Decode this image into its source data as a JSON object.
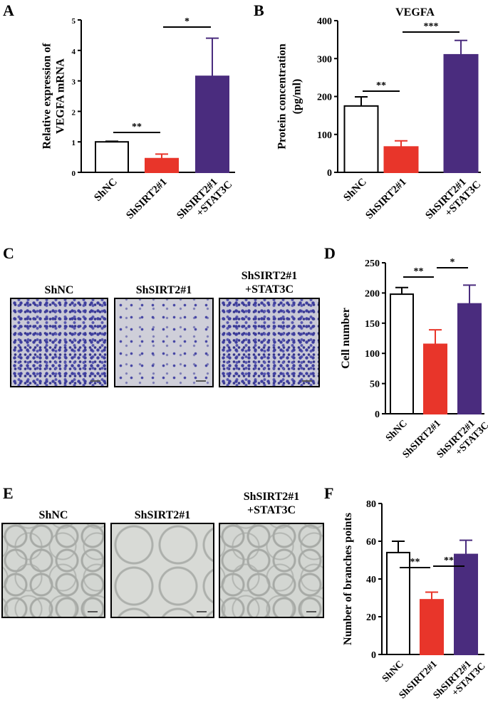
{
  "panels": {
    "A": "A",
    "B": "B",
    "C": "C",
    "D": "D",
    "E": "E",
    "F": "F"
  },
  "micrographs": {
    "c": [
      {
        "caption": "ShNC",
        "style": "stain"
      },
      {
        "caption": "ShSIRT2#1",
        "style": "stain sparse"
      },
      {
        "caption": "ShSIRT2#1\n+STAT3C",
        "style": "stain"
      }
    ],
    "e": [
      {
        "caption": "ShNC",
        "style": "tube"
      },
      {
        "caption": "ShSIRT2#1",
        "style": "tube sparse"
      },
      {
        "caption": "ShSIRT2#1\n+STAT3C",
        "style": "tube"
      }
    ]
  },
  "colors": {
    "shnc": "#ffffff",
    "shsirt2": "#e8352a",
    "stat3c": "#4a2c7e",
    "axis": "#000000"
  },
  "chart_data": [
    {
      "id": "A",
      "type": "bar",
      "title": "",
      "ylabel": "Relative expression of\nVEGFA mRNA",
      "xlabel": "",
      "categories": [
        "ShNC",
        "ShSIRT2#1",
        "ShSIRT2#1\n+STAT3C"
      ],
      "values": [
        1.0,
        0.45,
        3.15
      ],
      "errors": [
        0.02,
        0.15,
        1.25
      ],
      "ylim": [
        0,
        5
      ],
      "yticks": [
        0,
        1,
        2,
        3,
        4,
        5
      ],
      "significance": [
        {
          "from": 0,
          "to": 1,
          "label": "**"
        },
        {
          "from": 1,
          "to": 2,
          "label": "*"
        }
      ]
    },
    {
      "id": "B",
      "type": "bar",
      "title": "VEGFA",
      "ylabel": "Protein concentration\n(pg/ml)",
      "xlabel": "",
      "categories": [
        "ShNC",
        "ShSIRT2#1",
        "ShSIRT2#1\n+STAT3C"
      ],
      "values": [
        175,
        67,
        310
      ],
      "errors": [
        24,
        16,
        38
      ],
      "ylim": [
        0,
        400
      ],
      "yticks": [
        0,
        100,
        200,
        300,
        400
      ],
      "significance": [
        {
          "from": 0,
          "to": 1,
          "label": "**"
        },
        {
          "from": 1,
          "to": 2,
          "label": "***"
        }
      ]
    },
    {
      "id": "D",
      "type": "bar",
      "title": "",
      "ylabel": "Cell number",
      "xlabel": "",
      "categories": [
        "ShNC",
        "ShSIRT2#1",
        "ShSIRT2#1\n+STAT3C"
      ],
      "values": [
        198,
        115,
        182
      ],
      "errors": [
        11,
        24,
        31
      ],
      "ylim": [
        0,
        250
      ],
      "yticks": [
        0,
        50,
        100,
        150,
        200,
        250
      ],
      "significance": [
        {
          "from": 0,
          "to": 1,
          "label": "**"
        },
        {
          "from": 1,
          "to": 2,
          "label": "*"
        }
      ]
    },
    {
      "id": "F",
      "type": "bar",
      "title": "",
      "ylabel": "Number of branches points",
      "xlabel": "",
      "categories": [
        "ShNC",
        "ShSIRT2#1",
        "ShSIRT2#1\n+STAT3C"
      ],
      "values": [
        54,
        29,
        53
      ],
      "errors": [
        6,
        4,
        7.5
      ],
      "ylim": [
        0,
        80
      ],
      "yticks": [
        0,
        20,
        40,
        60,
        80
      ],
      "significance": [
        {
          "from": 0,
          "to": 1,
          "label": "**"
        },
        {
          "from": 1,
          "to": 2,
          "label": "**"
        }
      ]
    }
  ]
}
